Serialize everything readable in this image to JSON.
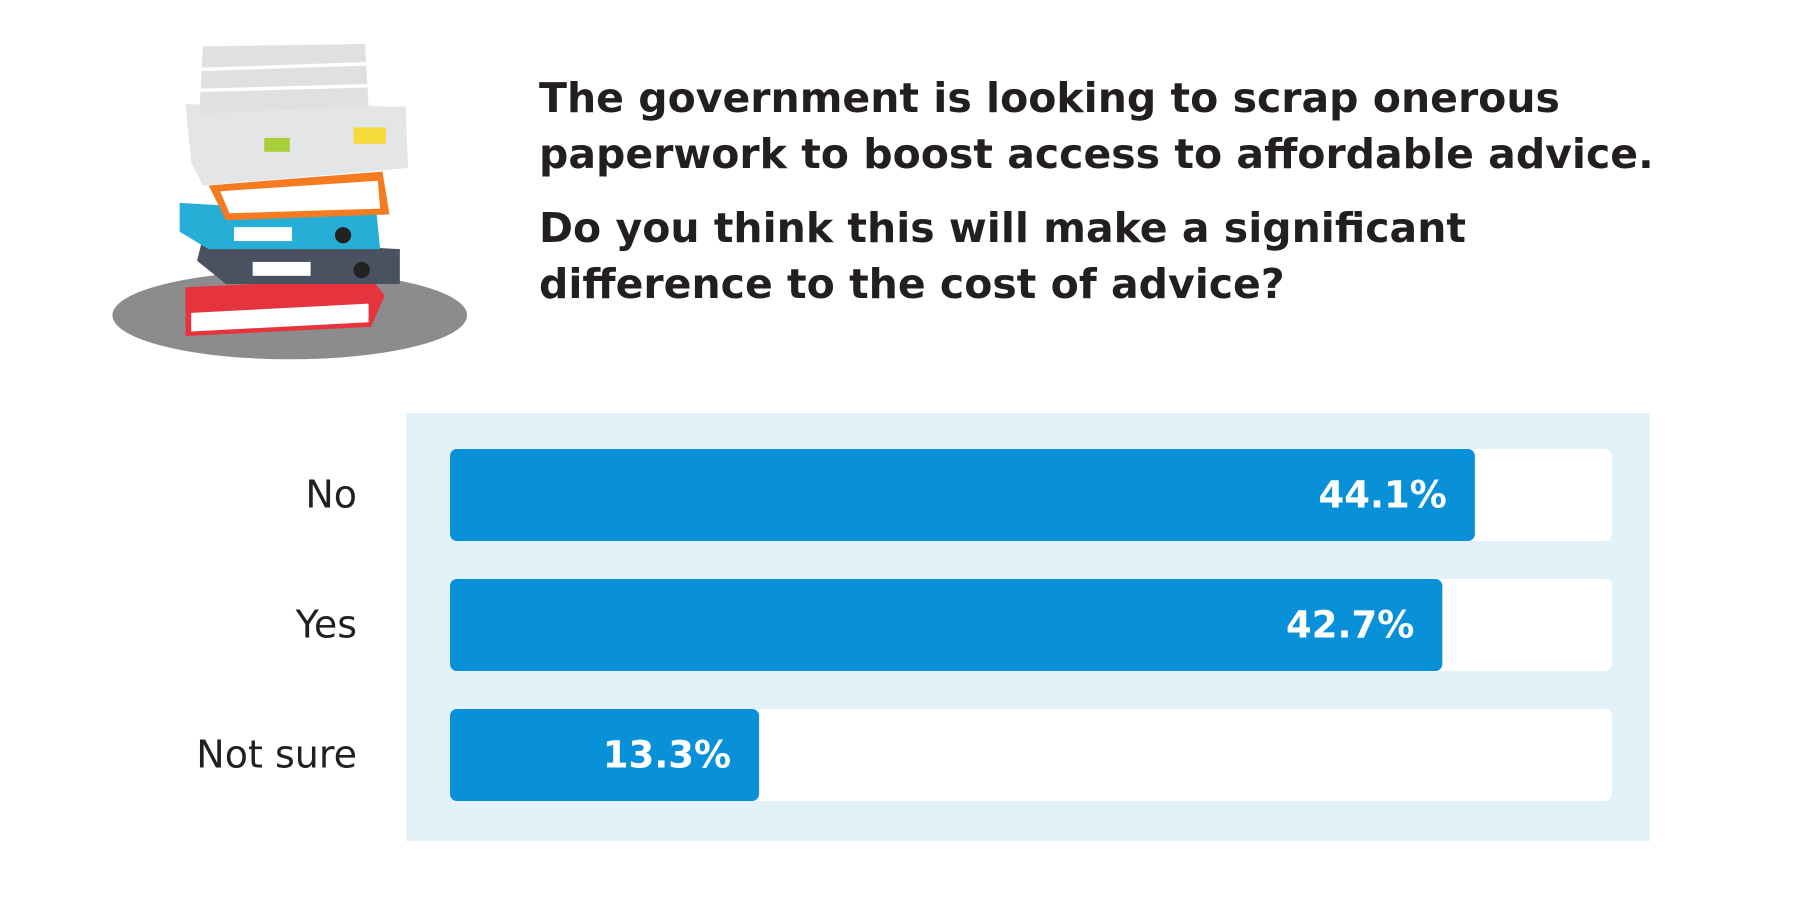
{
  "chart_data": {
    "type": "bar",
    "orientation": "horizontal",
    "title": "The government is looking to scrap onerous paperwork to boost access to affordable advice.",
    "subtitle": "Do you think this will make a significant difference to the cost of advice?",
    "categories": [
      "No",
      "Yes",
      "Not sure"
    ],
    "values": [
      44.1,
      42.7,
      13.3
    ],
    "value_labels": [
      "44.1%",
      "42.7%",
      "13.3%"
    ],
    "color": "#0891d8",
    "xlim": [
      0,
      50
    ]
  }
}
